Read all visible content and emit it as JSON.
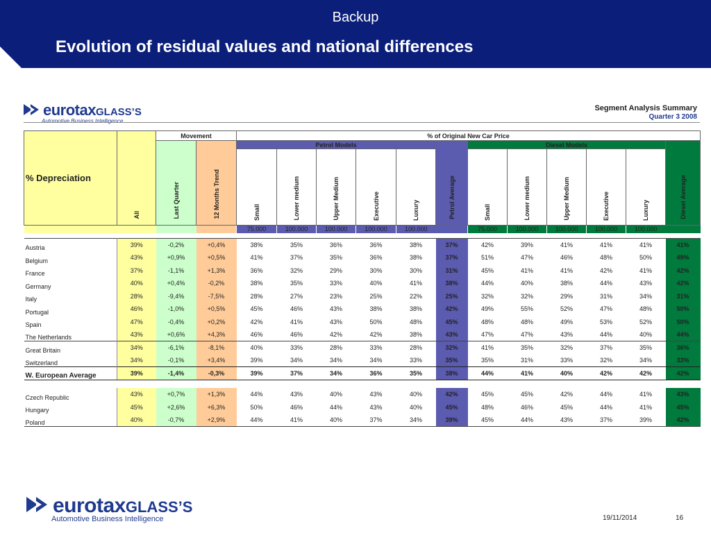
{
  "header": {
    "backup": "Backup",
    "title": "Evolution of residual values and national differences"
  },
  "brand": {
    "name_part1": "eurotax",
    "name_part2": "GLASS’S",
    "tagline": "Automotive Business Intelligence",
    "icon": "double-arrow-logo-icon",
    "color": "#1f3a8f"
  },
  "summary": {
    "title": "Segment Analysis Summary",
    "quarter": "Quarter 3 2008"
  },
  "table": {
    "depreciation_label": "% Depreciation",
    "movement_label": "Movement",
    "price_label": "% of Original New Car Price",
    "petrol_label": "Petrol Models",
    "diesel_label": "Diesel Models",
    "col_all": "All",
    "col_last_quarter": "Last Quarter",
    "col_12_months": "12 Months Trend",
    "petrol_cols": [
      "Small",
      "Lower medium",
      "Upper Medium",
      "Executive",
      "Luxury"
    ],
    "petrol_avg": "Petrol Average",
    "diesel_cols": [
      "Small",
      "Lower medium",
      "Upper Medium",
      "Executive",
      "Luxury"
    ],
    "diesel_avg": "Diesel Average",
    "volumes_petrol": [
      "75.000",
      "100.000",
      "100.000",
      "100.000",
      "100.000"
    ],
    "volumes_diesel": [
      "75.000",
      "100.000",
      "100.000",
      "100.000",
      "100.000"
    ],
    "colors": {
      "petrol": "#5b5bb0",
      "diesel": "#007a3d",
      "negative": "#e00000",
      "positive": "#1a9a1a"
    },
    "group1": [
      {
        "country": "Austria",
        "all": "39%",
        "lq": "-0,2%",
        "tr": "+0,4%",
        "p": [
          "38%",
          "35%",
          "36%",
          "36%",
          "38%"
        ],
        "pavg": "37%",
        "d": [
          "42%",
          "39%",
          "41%",
          "41%",
          "41%"
        ],
        "davg": "41%"
      },
      {
        "country": "Belgium",
        "all": "43%",
        "lq": "+0,9%",
        "tr": "+0,5%",
        "p": [
          "41%",
          "37%",
          "35%",
          "36%",
          "38%"
        ],
        "pavg": "37%",
        "d": [
          "51%",
          "47%",
          "46%",
          "48%",
          "50%"
        ],
        "davg": "49%"
      },
      {
        "country": "France",
        "all": "37%",
        "lq": "-1,1%",
        "tr": "+1,3%",
        "p": [
          "36%",
          "32%",
          "29%",
          "30%",
          "30%"
        ],
        "pavg": "31%",
        "d": [
          "45%",
          "41%",
          "41%",
          "42%",
          "41%"
        ],
        "davg": "42%"
      },
      {
        "country": "Germany",
        "all": "40%",
        "lq": "+0,4%",
        "tr": "-0,2%",
        "p": [
          "38%",
          "35%",
          "33%",
          "40%",
          "41%"
        ],
        "pavg": "38%",
        "d": [
          "44%",
          "40%",
          "38%",
          "44%",
          "43%"
        ],
        "davg": "42%"
      },
      {
        "country": "Italy",
        "all": "28%",
        "lq": "-9,4%",
        "tr": "-7,5%",
        "p": [
          "28%",
          "27%",
          "23%",
          "25%",
          "22%"
        ],
        "pavg": "25%",
        "d": [
          "32%",
          "32%",
          "29%",
          "31%",
          "34%"
        ],
        "davg": "31%"
      },
      {
        "country": "Portugal",
        "all": "46%",
        "lq": "-1,0%",
        "tr": "+0,5%",
        "p": [
          "45%",
          "46%",
          "43%",
          "38%",
          "38%"
        ],
        "pavg": "42%",
        "d": [
          "49%",
          "55%",
          "52%",
          "47%",
          "48%"
        ],
        "davg": "50%"
      },
      {
        "country": "Spain",
        "all": "47%",
        "lq": "-0,4%",
        "tr": "+0,2%",
        "p": [
          "42%",
          "41%",
          "43%",
          "50%",
          "48%"
        ],
        "pavg": "45%",
        "d": [
          "48%",
          "48%",
          "49%",
          "53%",
          "52%"
        ],
        "davg": "50%"
      },
      {
        "country": "The Netherlands",
        "all": "43%",
        "lq": "+0,6%",
        "tr": "+4,3%",
        "p": [
          "46%",
          "46%",
          "42%",
          "42%",
          "38%"
        ],
        "pavg": "43%",
        "d": [
          "47%",
          "47%",
          "43%",
          "44%",
          "40%"
        ],
        "davg": "44%"
      }
    ],
    "group2": [
      {
        "country": "Great Britain",
        "all": "34%",
        "lq": "-6,1%",
        "tr": "-8,1%",
        "p": [
          "40%",
          "33%",
          "28%",
          "33%",
          "28%"
        ],
        "pavg": "32%",
        "d": [
          "41%",
          "35%",
          "32%",
          "37%",
          "35%"
        ],
        "davg": "36%"
      },
      {
        "country": "Switzerland",
        "all": "34%",
        "lq": "-0,1%",
        "tr": "+3,4%",
        "p": [
          "39%",
          "34%",
          "34%",
          "34%",
          "33%"
        ],
        "pavg": "35%",
        "d": [
          "35%",
          "31%",
          "33%",
          "32%",
          "34%"
        ],
        "davg": "33%"
      }
    ],
    "average": {
      "country": "W. European Average",
      "all": "39%",
      "lq": "-1,4%",
      "tr": "-0,3%",
      "p": [
        "39%",
        "37%",
        "34%",
        "36%",
        "35%"
      ],
      "pavg": "38%",
      "d": [
        "44%",
        "41%",
        "40%",
        "42%",
        "42%"
      ],
      "davg": "42%"
    },
    "group3": [
      {
        "country": "Czech Republic",
        "all": "43%",
        "lq": "+0,7%",
        "tr": "+1,3%",
        "p": [
          "44%",
          "43%",
          "40%",
          "43%",
          "40%"
        ],
        "pavg": "42%",
        "d": [
          "45%",
          "45%",
          "42%",
          "44%",
          "41%"
        ],
        "davg": "43%"
      },
      {
        "country": "Hungary",
        "all": "45%",
        "lq": "+2,6%",
        "tr": "+6,3%",
        "p": [
          "50%",
          "46%",
          "44%",
          "43%",
          "40%"
        ],
        "pavg": "45%",
        "d": [
          "48%",
          "46%",
          "45%",
          "44%",
          "41%"
        ],
        "davg": "45%"
      },
      {
        "country": "Poland",
        "all": "40%",
        "lq": "-0,7%",
        "tr": "+2,9%",
        "p": [
          "44%",
          "41%",
          "40%",
          "37%",
          "34%"
        ],
        "pavg": "39%",
        "d": [
          "45%",
          "44%",
          "43%",
          "37%",
          "39%"
        ],
        "davg": "42%"
      }
    ]
  },
  "footer": {
    "date": "19/11/2014",
    "page": "16"
  }
}
